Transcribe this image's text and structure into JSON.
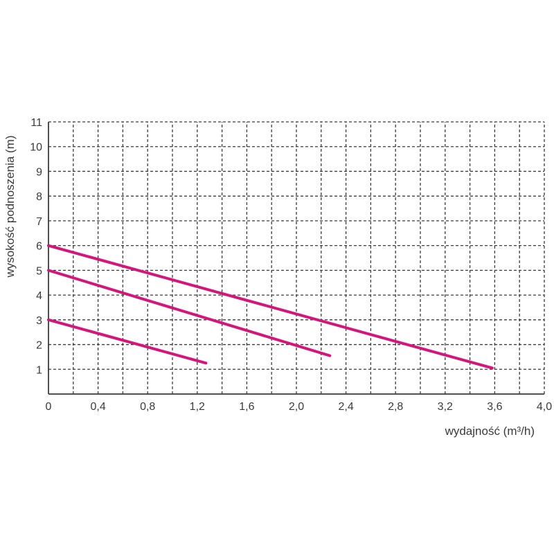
{
  "chart_data": {
    "type": "line",
    "xlabel": "wydajność (m³/h)",
    "ylabel": "wysokość podnoszenia (m)",
    "xlim": [
      0,
      4.0
    ],
    "ylim": [
      0,
      11
    ],
    "x_tick_values": [
      0,
      0.4,
      0.8,
      1.2,
      1.6,
      2.0,
      2.4,
      2.8,
      3.2,
      3.6,
      4.0
    ],
    "x_tick_labels": [
      "0",
      "0,4",
      "0,8",
      "1,2",
      "1,6",
      "2,0",
      "2,4",
      "2,8",
      "3,2",
      "3,6",
      "4,0"
    ],
    "y_tick_values": [
      1,
      2,
      3,
      4,
      5,
      6,
      7,
      8,
      9,
      10,
      11
    ],
    "y_tick_labels": [
      "1",
      "2",
      "3",
      "4",
      "5",
      "6",
      "7",
      "8",
      "9",
      "10",
      "11"
    ],
    "grid": true,
    "grid_style": "dashed",
    "grid_x_step": 0.2,
    "series_color": "#d6157a",
    "series": [
      {
        "x": [
          0,
          3.58
        ],
        "y": [
          6.0,
          1.05
        ]
      },
      {
        "x": [
          0,
          2.27
        ],
        "y": [
          5.0,
          1.55
        ]
      },
      {
        "x": [
          0,
          1.27
        ],
        "y": [
          3.0,
          1.25
        ]
      }
    ]
  }
}
